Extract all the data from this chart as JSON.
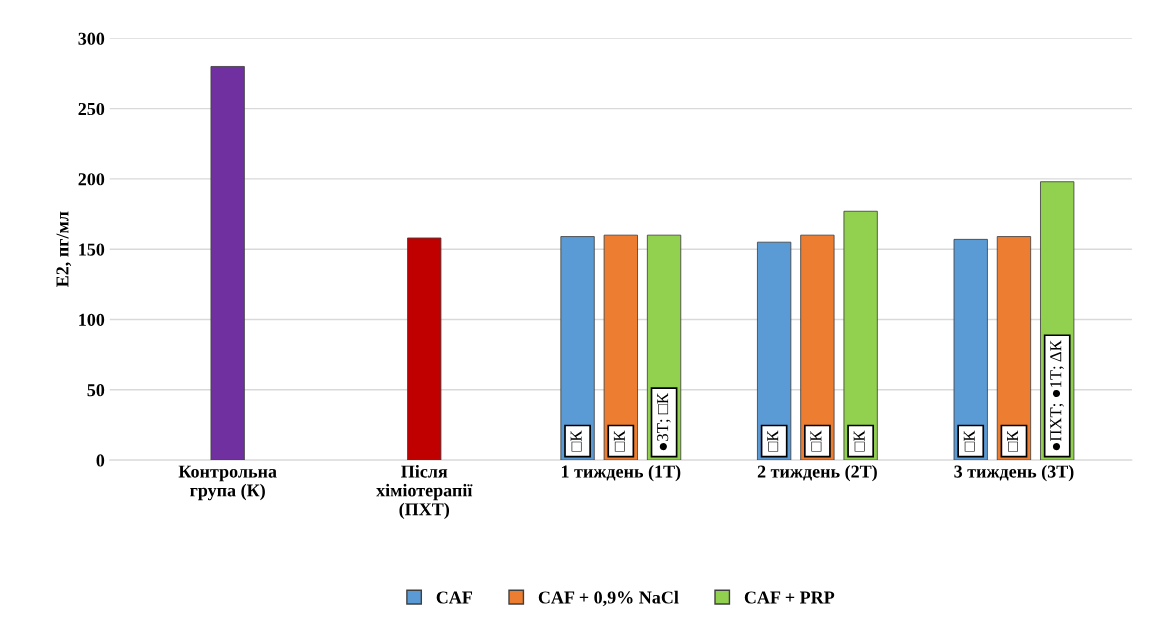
{
  "chart_data": {
    "type": "bar",
    "ylabel": "E2, пг/мл",
    "categories": [
      "Контрольна\nгрупа (К)",
      "Після\nхіміотерапії\n(ПХТ)",
      "1 тиждень (1Т)",
      "2 тиждень (2Т)",
      "3 тиждень (3Т)"
    ],
    "series": [
      {
        "name": "CAF",
        "color": "#5b9bd5",
        "colors": [
          "#7030a0",
          "#c00000",
          "#5b9bd5",
          "#5b9bd5",
          "#5b9bd5"
        ],
        "values": [
          280,
          158,
          159,
          155,
          157
        ]
      },
      {
        "name": "CAF + 0,9% NaCl",
        "color": "#ed7d31",
        "values": [
          null,
          null,
          160,
          160,
          159
        ]
      },
      {
        "name": "CAF + PRP",
        "color": "#92d050",
        "values": [
          null,
          null,
          160,
          177,
          198
        ]
      }
    ],
    "annotations": [
      "□К",
      "□К",
      "●3Т; □К",
      "□К",
      "□К",
      "□К",
      "□К",
      "□К",
      "●ПХТ; ●1Т; ΔК"
    ],
    "ylim": [
      0,
      300
    ],
    "yticks": [
      0,
      50,
      100,
      150,
      200,
      250,
      300
    ],
    "grid": "y",
    "legend": "bottom"
  }
}
